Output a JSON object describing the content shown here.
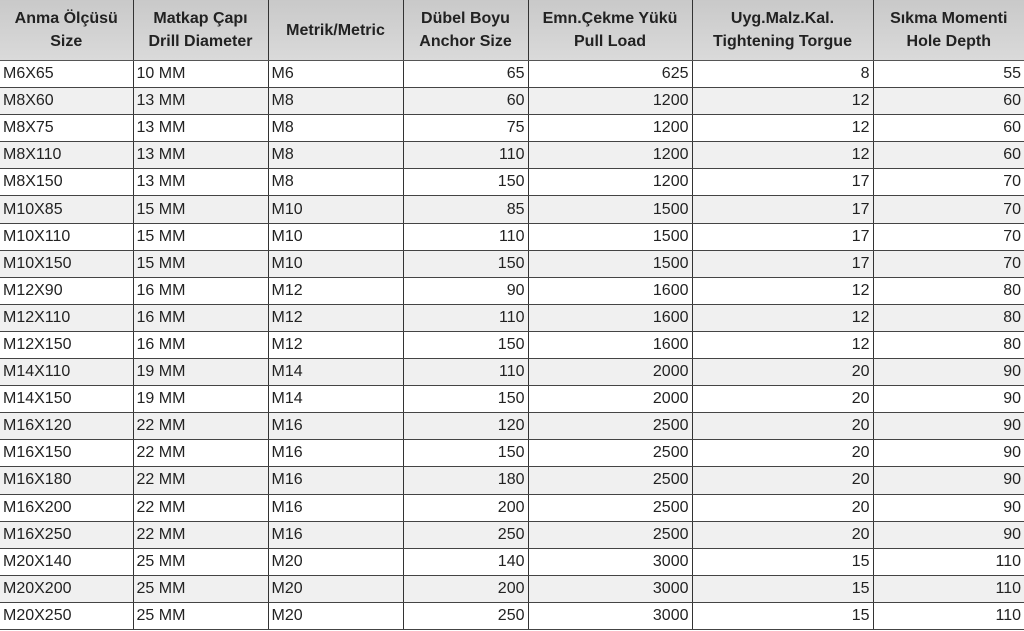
{
  "table": {
    "headers": [
      [
        "Anma Ölçüsü",
        "Size"
      ],
      [
        "Matkap Çapı",
        "Drill Diameter"
      ],
      [
        "Metrik/Metric",
        ""
      ],
      [
        "Dübel Boyu",
        "Anchor Size"
      ],
      [
        "Emn.Çekme Yükü",
        "Pull Load"
      ],
      [
        "Uyg.Malz.Kal.",
        "Tightening Torgue"
      ],
      [
        "Sıkma Momenti",
        "Hole Depth"
      ]
    ],
    "rows": [
      [
        "M6X65",
        "10 MM",
        "M6",
        "65",
        "625",
        "8",
        "55"
      ],
      [
        "M8X60",
        "13 MM",
        "M8",
        "60",
        "1200",
        "12",
        "60"
      ],
      [
        "M8X75",
        "13 MM",
        "M8",
        "75",
        "1200",
        "12",
        "60"
      ],
      [
        "M8X110",
        "13 MM",
        "M8",
        "110",
        "1200",
        "12",
        "60"
      ],
      [
        "M8X150",
        "13 MM",
        "M8",
        "150",
        "1200",
        "17",
        "70"
      ],
      [
        "M10X85",
        "15 MM",
        "M10",
        "85",
        "1500",
        "17",
        "70"
      ],
      [
        "M10X110",
        "15 MM",
        "M10",
        "110",
        "1500",
        "17",
        "70"
      ],
      [
        "M10X150",
        "15 MM",
        "M10",
        "150",
        "1500",
        "17",
        "70"
      ],
      [
        "M12X90",
        "16 MM",
        "M12",
        "90",
        "1600",
        "12",
        "80"
      ],
      [
        "M12X110",
        "16 MM",
        "M12",
        "110",
        "1600",
        "12",
        "80"
      ],
      [
        "M12X150",
        "16 MM",
        "M12",
        "150",
        "1600",
        "12",
        "80"
      ],
      [
        "M14X110",
        "19 MM",
        "M14",
        "110",
        "2000",
        "20",
        "90"
      ],
      [
        "M14X150",
        "19 MM",
        "M14",
        "150",
        "2000",
        "20",
        "90"
      ],
      [
        "M16X120",
        "22 MM",
        "M16",
        "120",
        "2500",
        "20",
        "90"
      ],
      [
        "M16X150",
        "22 MM",
        "M16",
        "150",
        "2500",
        "20",
        "90"
      ],
      [
        "M16X180",
        "22 MM",
        "M16",
        "180",
        "2500",
        "20",
        "90"
      ],
      [
        "M16X200",
        "22 MM",
        "M16",
        "200",
        "2500",
        "20",
        "90"
      ],
      [
        "M16X250",
        "22 MM",
        "M16",
        "250",
        "2500",
        "20",
        "90"
      ],
      [
        "M20X140",
        "25 MM",
        "M20",
        "140",
        "3000",
        "15",
        "110"
      ],
      [
        "M20X200",
        "25 MM",
        "M20",
        "200",
        "3000",
        "15",
        "110"
      ],
      [
        "M20X250",
        "25 MM",
        "M20",
        "250",
        "3000",
        "15",
        "110"
      ]
    ]
  }
}
